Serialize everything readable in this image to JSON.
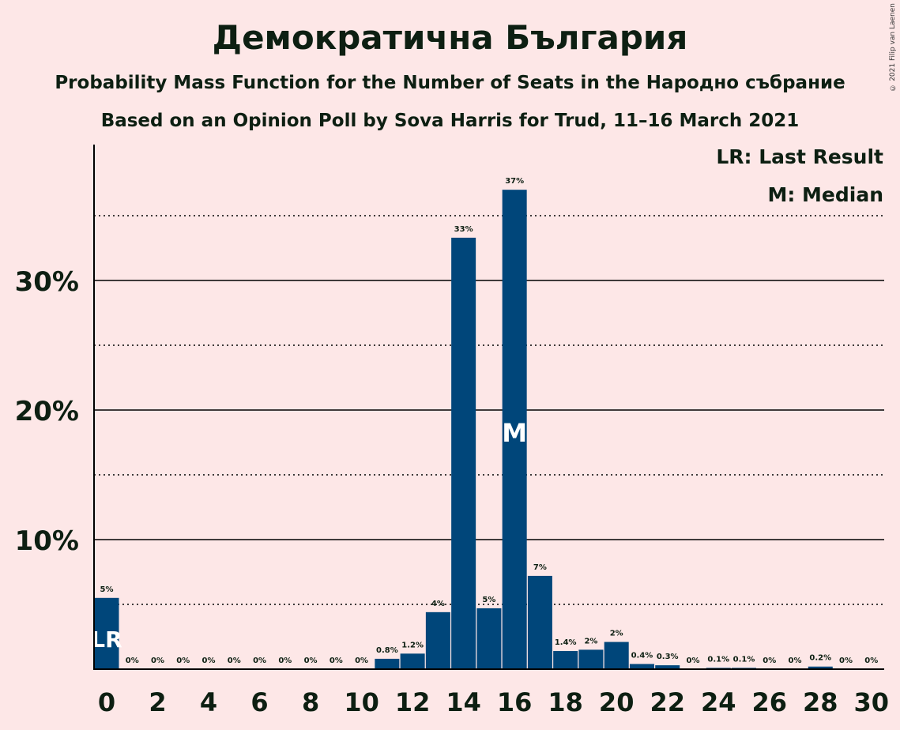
{
  "header": {
    "title": "Демократична България",
    "subtitle1": "Probability Mass Function for the Number of Seats in the Народно събрание",
    "subtitle2": "Based on an Opinion Poll by Sova Harris for Trud, 11–16 March 2021",
    "copyright": "© 2021 Filip van Laenen"
  },
  "legend": {
    "last_result": "LR: Last Result",
    "median": "M: Median"
  },
  "chart_data": {
    "type": "bar",
    "title": "Демократична България",
    "xlabel": "",
    "ylabel": "",
    "x": [
      0,
      1,
      2,
      3,
      4,
      5,
      6,
      7,
      8,
      9,
      10,
      11,
      12,
      13,
      14,
      15,
      16,
      17,
      18,
      19,
      20,
      21,
      22,
      23,
      24,
      25,
      26,
      27,
      28,
      29,
      30
    ],
    "values": [
      5.5,
      0,
      0,
      0,
      0,
      0,
      0,
      0,
      0,
      0,
      0,
      0.8,
      1.2,
      4.4,
      33.3,
      4.7,
      37.0,
      7.2,
      1.4,
      1.5,
      2.1,
      0.4,
      0.3,
      0,
      0.1,
      0.1,
      0,
      0,
      0.2,
      0,
      0
    ],
    "data_labels": [
      "5%",
      "0%",
      "0%",
      "0%",
      "0%",
      "0%",
      "0%",
      "0%",
      "0%",
      "0%",
      "0%",
      "0.8%",
      "1.2%",
      "4%",
      "33%",
      "5%",
      "37%",
      "7%",
      "1.4%",
      "2%",
      "2%",
      "0.4%",
      "0.3%",
      "0%",
      "0.1%",
      "0.1%",
      "0%",
      "0%",
      "0.2%",
      "0%",
      "0%"
    ],
    "x_ticks": [
      "0",
      "2",
      "4",
      "6",
      "8",
      "10",
      "12",
      "14",
      "16",
      "18",
      "20",
      "22",
      "24",
      "26",
      "28",
      "30"
    ],
    "y_ticks": [
      "10%",
      "20%",
      "30%"
    ],
    "ylim": [
      0,
      40
    ],
    "last_result_seat": 0,
    "last_result_marker": "LR",
    "median_seat": 16,
    "median_marker": "M",
    "bar_color": "#00467A",
    "grid": true
  }
}
